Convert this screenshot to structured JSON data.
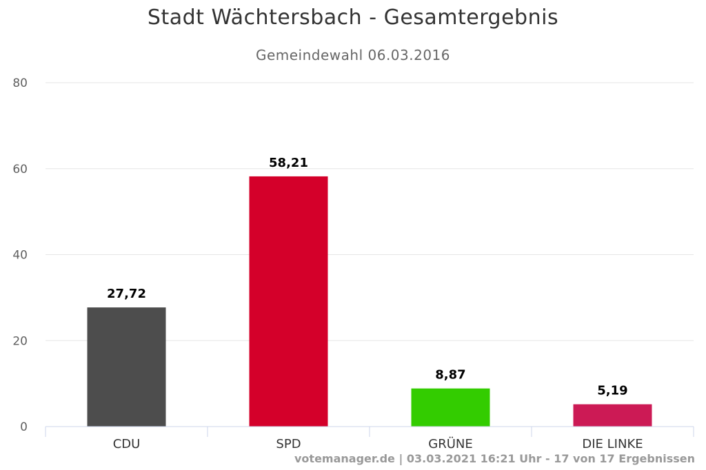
{
  "chart_data": {
    "type": "bar",
    "title": "Stadt Wächtersbach - Gesamtergebnis",
    "subtitle": "Gemeindewahl 06.03.2016",
    "categories": [
      "CDU",
      "SPD",
      "GRÜNE",
      "DIE LINKE"
    ],
    "values": [
      27.72,
      58.21,
      8.87,
      5.19
    ],
    "data_labels": [
      "27,72",
      "58,21",
      "8,87",
      "5,19"
    ],
    "colors": [
      "#4d4d4d",
      "#d4002a",
      "#33cc00",
      "#cc1a55"
    ],
    "ylim": [
      0,
      80
    ],
    "yticks": [
      0,
      20,
      40,
      60,
      80
    ],
    "grid": true,
    "legend": "none",
    "credits": "votemanager.de | 03.03.2021 16:21 Uhr - 17 von 17 Ergebnissen"
  }
}
